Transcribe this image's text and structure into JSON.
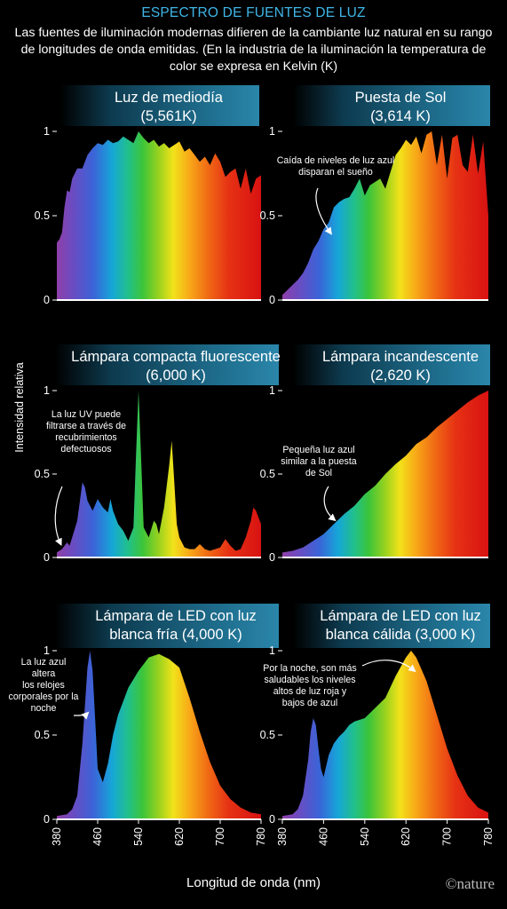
{
  "title": "ESPECTRO DE FUENTES DE LUZ",
  "intro": "Las fuentes de iluminación modernas difieren de la cambiante luz natural en su rango de longitudes de onda emitidas. (En la industria de la iluminación la temperatura de color se expresa en Kelvin (K)",
  "ylabel": "Intensidad relativa",
  "xlabel": "Longitud de onda (nm)",
  "credit": "©nature",
  "colors": {
    "title_blue": "#3fb6e8",
    "background": "#000000",
    "banner": "#1f6f8f"
  },
  "chart_data": [
    {
      "type": "area",
      "name": "Luz de mediodía",
      "subtitle": "(5,561K)",
      "xlim": [
        380,
        780
      ],
      "ylim": [
        0,
        1
      ],
      "yticks": [
        0,
        0.5,
        1
      ],
      "x": [
        380,
        385,
        390,
        395,
        400,
        405,
        410,
        420,
        430,
        440,
        450,
        460,
        470,
        480,
        490,
        500,
        510,
        520,
        530,
        540,
        550,
        560,
        570,
        580,
        590,
        600,
        610,
        620,
        630,
        640,
        650,
        660,
        670,
        680,
        690,
        700,
        710,
        720,
        730,
        740,
        750,
        760,
        770,
        780
      ],
      "values": [
        0.34,
        0.36,
        0.4,
        0.55,
        0.65,
        0.64,
        0.72,
        0.78,
        0.78,
        0.86,
        0.9,
        0.93,
        0.92,
        0.95,
        0.93,
        0.94,
        0.97,
        0.95,
        0.93,
        1.0,
        0.96,
        0.93,
        0.95,
        0.91,
        0.93,
        0.9,
        0.92,
        0.94,
        0.88,
        0.9,
        0.86,
        0.82,
        0.85,
        0.8,
        0.87,
        0.82,
        0.73,
        0.76,
        0.78,
        0.66,
        0.78,
        0.63,
        0.72,
        0.74
      ]
    },
    {
      "type": "area",
      "name": "Puesta de Sol",
      "subtitle": "(3,614 K)",
      "xlim": [
        380,
        780
      ],
      "ylim": [
        0,
        1
      ],
      "annotation": "Caída de niveles de luz azul disparan el sueño",
      "x": [
        380,
        390,
        400,
        410,
        420,
        430,
        440,
        450,
        460,
        470,
        480,
        490,
        500,
        510,
        520,
        530,
        540,
        550,
        560,
        570,
        580,
        590,
        600,
        610,
        620,
        630,
        640,
        650,
        660,
        670,
        680,
        690,
        700,
        710,
        720,
        730,
        740,
        750,
        760,
        770,
        780
      ],
      "values": [
        0.03,
        0.06,
        0.09,
        0.12,
        0.16,
        0.22,
        0.3,
        0.35,
        0.42,
        0.46,
        0.55,
        0.58,
        0.6,
        0.61,
        0.66,
        0.72,
        0.62,
        0.68,
        0.7,
        0.72,
        0.66,
        0.76,
        0.86,
        0.9,
        0.95,
        0.92,
        0.97,
        0.87,
        0.98,
        1.0,
        0.8,
        0.98,
        0.72,
        0.96,
        0.98,
        0.8,
        0.76,
        0.98,
        0.75,
        0.94,
        0.5
      ]
    },
    {
      "type": "area",
      "name": "Lámpara compacta fluorescente",
      "subtitle": "(6,000 K)",
      "xlim": [
        380,
        780
      ],
      "ylim": [
        0,
        1
      ],
      "yticks": [
        0,
        0.5,
        1
      ],
      "annotation": "La luz UV puede filtrarse a través de recubrimientos defectuosos",
      "x": [
        380,
        390,
        400,
        405,
        410,
        420,
        430,
        435,
        440,
        450,
        460,
        470,
        480,
        485,
        490,
        500,
        510,
        520,
        530,
        535,
        540,
        545,
        550,
        560,
        570,
        575,
        580,
        590,
        600,
        605,
        610,
        615,
        620,
        630,
        640,
        650,
        660,
        670,
        680,
        690,
        700,
        710,
        720,
        730,
        740,
        750,
        760,
        765,
        770,
        780
      ],
      "values": [
        0.03,
        0.05,
        0.09,
        0.07,
        0.12,
        0.22,
        0.45,
        0.42,
        0.34,
        0.28,
        0.35,
        0.3,
        0.27,
        0.35,
        0.28,
        0.2,
        0.16,
        0.1,
        0.18,
        0.6,
        1.0,
        0.6,
        0.18,
        0.12,
        0.22,
        0.2,
        0.14,
        0.3,
        0.55,
        0.7,
        0.45,
        0.2,
        0.12,
        0.06,
        0.05,
        0.05,
        0.08,
        0.05,
        0.04,
        0.05,
        0.06,
        0.11,
        0.07,
        0.04,
        0.05,
        0.12,
        0.22,
        0.3,
        0.28,
        0.2
      ]
    },
    {
      "type": "area",
      "name": "Lámpara incandescente",
      "subtitle": "(2,620 K)",
      "xlim": [
        380,
        780
      ],
      "ylim": [
        0,
        1
      ],
      "annotation": "Pequeña luz azul similar a la puesta de Sol",
      "x": [
        380,
        400,
        420,
        440,
        460,
        480,
        500,
        520,
        540,
        560,
        580,
        600,
        620,
        640,
        660,
        680,
        700,
        720,
        740,
        760,
        780
      ],
      "values": [
        0.03,
        0.04,
        0.06,
        0.1,
        0.14,
        0.2,
        0.26,
        0.31,
        0.38,
        0.43,
        0.5,
        0.56,
        0.61,
        0.68,
        0.72,
        0.78,
        0.83,
        0.88,
        0.93,
        0.97,
        1.0
      ]
    },
    {
      "type": "area",
      "name": "Lámpara de LED con luz blanca fría",
      "subtitle": "(4,000 K)",
      "xlim": [
        380,
        780
      ],
      "ylim": [
        0,
        1
      ],
      "yticks": [
        0,
        0.5,
        1
      ],
      "annotation": "La luz azul altera los relojes corporales por la noche",
      "x": [
        380,
        400,
        410,
        420,
        430,
        440,
        445,
        450,
        455,
        460,
        470,
        480,
        490,
        500,
        510,
        520,
        540,
        560,
        580,
        600,
        620,
        640,
        660,
        680,
        700,
        720,
        740,
        760,
        780
      ],
      "values": [
        0.02,
        0.03,
        0.06,
        0.14,
        0.45,
        0.9,
        1.0,
        0.88,
        0.6,
        0.3,
        0.22,
        0.33,
        0.5,
        0.62,
        0.7,
        0.78,
        0.88,
        0.96,
        0.98,
        0.95,
        0.9,
        0.72,
        0.52,
        0.34,
        0.2,
        0.12,
        0.07,
        0.04,
        0.03
      ]
    },
    {
      "type": "area",
      "name": "Lámpara de LED con luz blanca cálida",
      "subtitle": "(3,000 K)",
      "xlim": [
        380,
        780
      ],
      "ylim": [
        0,
        1
      ],
      "annotation": "Por la noche, son más saludables los niveles altos de luz roja y bajos de azul",
      "x": [
        380,
        400,
        410,
        420,
        430,
        435,
        440,
        445,
        450,
        455,
        460,
        470,
        480,
        490,
        500,
        510,
        520,
        540,
        560,
        580,
        600,
        620,
        630,
        640,
        660,
        680,
        700,
        720,
        740,
        760,
        780
      ],
      "values": [
        0.02,
        0.03,
        0.06,
        0.14,
        0.35,
        0.52,
        0.6,
        0.56,
        0.42,
        0.3,
        0.25,
        0.38,
        0.45,
        0.49,
        0.52,
        0.56,
        0.58,
        0.6,
        0.66,
        0.72,
        0.85,
        0.96,
        1.0,
        0.96,
        0.82,
        0.62,
        0.42,
        0.26,
        0.14,
        0.07,
        0.04
      ]
    }
  ],
  "x_axis": {
    "ticks": [
      380,
      460,
      540,
      620,
      700,
      780
    ],
    "xlim": [
      380,
      780
    ]
  }
}
